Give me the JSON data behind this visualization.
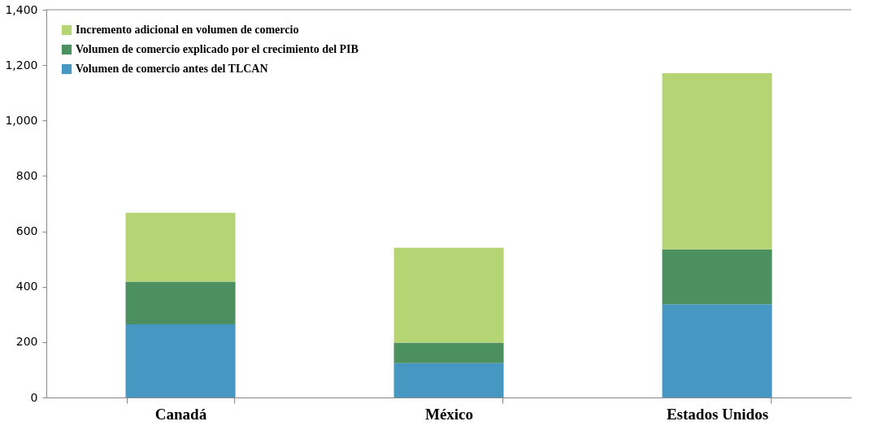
{
  "chart_data": {
    "type": "bar",
    "stacked": true,
    "categories": [
      "Canadá",
      "México",
      "Estados Unidos"
    ],
    "series": [
      {
        "name": "Volumen de comercio antes del TLCAN",
        "color": "#4698c3",
        "values": [
          264,
          124,
          337
        ]
      },
      {
        "name": "Volumen de comercio explicado por el crecimiento del PIB",
        "color": "#4c9060",
        "values": [
          154,
          74,
          198
        ]
      },
      {
        "name": "Incremento adicional en volumen de comercio",
        "color": "#b5d574",
        "values": [
          249,
          343,
          636
        ]
      }
    ],
    "ylim": [
      0,
      1400
    ],
    "yticks": [
      0,
      200,
      400,
      600,
      800,
      {
        "value": 1000,
        "label": "1,000"
      },
      {
        "value": 1200,
        "label": "1,200"
      },
      {
        "value": 1400,
        "label": "1,400"
      }
    ],
    "grid": false,
    "legend": "top left"
  }
}
